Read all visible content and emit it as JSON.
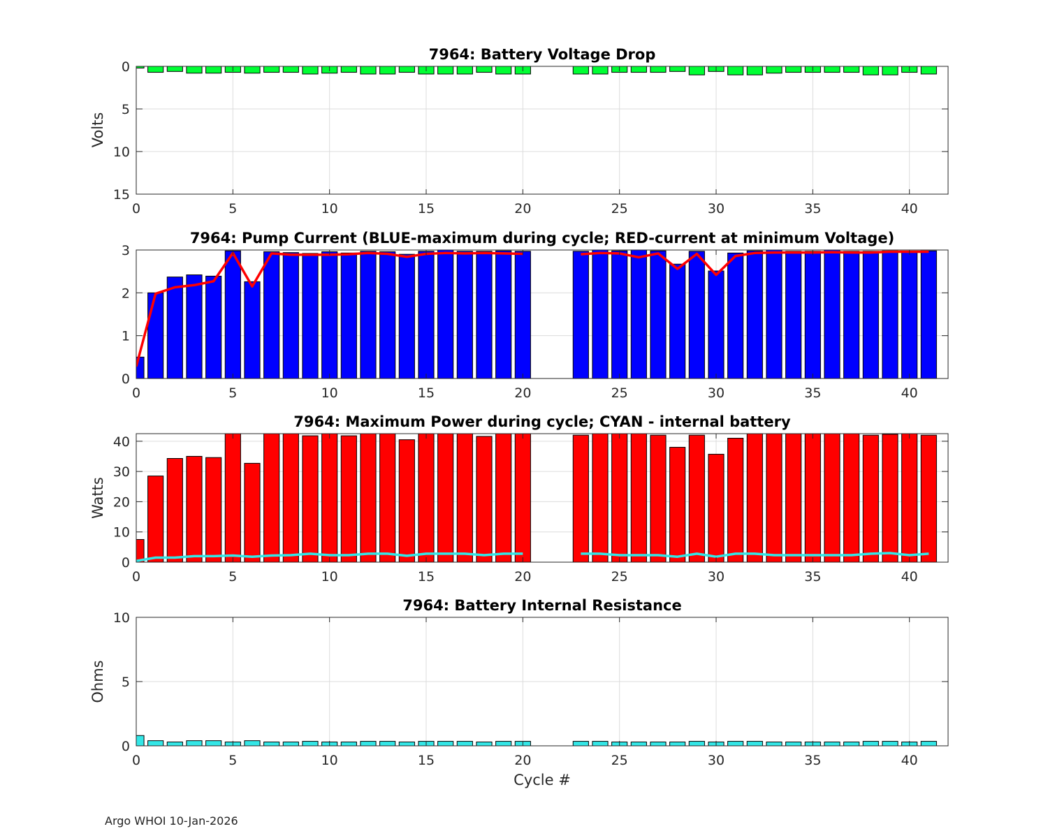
{
  "footer": "Argo WHOI 10-Jan-2026",
  "colors": {
    "voltage_bar": "#00ff33",
    "current_bar": "#0000ff",
    "current_line": "#ff0000",
    "power_bar": "#ff0000",
    "internal_line": "#33e6e6",
    "resistance_bar": "#33e6e6"
  },
  "chart_data": [
    {
      "type": "bar",
      "title": "7964: Battery Voltage Drop",
      "xlabel": "",
      "ylabel": "Volts",
      "xlim": [
        0,
        42
      ],
      "ylim": [
        0,
        15
      ],
      "y_reversed": true,
      "xticks": [
        "0",
        "5",
        "10",
        "15",
        "20",
        "25",
        "30",
        "35",
        "40"
      ],
      "yticks": [
        "0",
        "5",
        "10",
        "15"
      ],
      "grid": true,
      "x": [
        0,
        1,
        2,
        3,
        4,
        5,
        6,
        7,
        8,
        9,
        10,
        11,
        12,
        13,
        14,
        15,
        16,
        17,
        18,
        19,
        20,
        23,
        24,
        25,
        26,
        27,
        28,
        29,
        30,
        31,
        32,
        33,
        34,
        35,
        36,
        37,
        38,
        39,
        40,
        41
      ],
      "values": [
        0.2,
        0.7,
        0.6,
        0.8,
        0.8,
        0.7,
        0.8,
        0.7,
        0.7,
        0.9,
        0.8,
        0.7,
        0.9,
        0.9,
        0.7,
        0.9,
        0.9,
        0.9,
        0.7,
        0.9,
        0.9,
        0.9,
        0.9,
        0.7,
        0.7,
        0.7,
        0.6,
        1.0,
        0.6,
        1.0,
        1.0,
        0.8,
        0.7,
        0.7,
        0.7,
        0.7,
        1.0,
        1.0,
        0.7,
        0.9
      ]
    },
    {
      "type": "bar",
      "title": "7964: Pump Current (BLUE-maximum during cycle; RED-current at minimum Voltage)",
      "xlabel": "",
      "ylabel": "",
      "xlim": [
        0,
        42
      ],
      "ylim": [
        0,
        3
      ],
      "xticks": [
        "0",
        "5",
        "10",
        "15",
        "20",
        "25",
        "30",
        "35",
        "40"
      ],
      "yticks": [
        "0",
        "1",
        "2",
        "3"
      ],
      "grid": true,
      "x": [
        0,
        1,
        2,
        3,
        4,
        5,
        6,
        7,
        8,
        9,
        10,
        11,
        12,
        13,
        14,
        15,
        16,
        17,
        18,
        19,
        20,
        23,
        24,
        25,
        26,
        27,
        28,
        29,
        30,
        31,
        32,
        33,
        34,
        35,
        36,
        37,
        38,
        39,
        40,
        41
      ],
      "series": [
        {
          "name": "maximum during cycle",
          "kind": "bar",
          "values": [
            0.5,
            2.0,
            2.37,
            2.42,
            2.39,
            2.98,
            2.26,
            2.96,
            2.94,
            2.92,
            2.96,
            2.93,
            2.97,
            2.96,
            2.9,
            2.97,
            3.0,
            2.97,
            2.97,
            2.98,
            2.97,
            2.97,
            3.0,
            2.98,
            3.0,
            2.98,
            2.67,
            2.97,
            2.51,
            2.93,
            2.98,
            3.0,
            2.97,
            2.97,
            3.0,
            2.97,
            2.97,
            2.98,
            2.97,
            2.98
          ]
        },
        {
          "name": "current at minimum Voltage",
          "kind": "line",
          "values": [
            0.28,
            1.98,
            2.13,
            2.18,
            2.27,
            2.93,
            2.15,
            2.92,
            2.89,
            2.89,
            2.89,
            2.9,
            2.93,
            2.91,
            2.84,
            2.91,
            2.93,
            2.92,
            2.93,
            2.92,
            2.91,
            2.9,
            2.93,
            2.92,
            2.83,
            2.92,
            2.56,
            2.91,
            2.42,
            2.86,
            2.93,
            2.94,
            2.94,
            2.94,
            2.95,
            2.94,
            2.94,
            2.96,
            2.96,
            2.96
          ]
        }
      ]
    },
    {
      "type": "bar",
      "title": "7964: Maximum Power during cycle; CYAN - internal battery",
      "xlabel": "",
      "ylabel": "Watts",
      "xlim": [
        0,
        42
      ],
      "ylim": [
        0,
        42.5
      ],
      "xticks": [
        "0",
        "5",
        "10",
        "15",
        "20",
        "25",
        "30",
        "35",
        "40"
      ],
      "yticks": [
        "0",
        "10",
        "20",
        "30",
        "40"
      ],
      "grid": true,
      "x": [
        0,
        1,
        2,
        3,
        4,
        5,
        6,
        7,
        8,
        9,
        10,
        11,
        12,
        13,
        14,
        15,
        16,
        17,
        18,
        19,
        20,
        23,
        24,
        25,
        26,
        27,
        28,
        29,
        30,
        31,
        32,
        33,
        34,
        35,
        36,
        37,
        38,
        39,
        40,
        41
      ],
      "series": [
        {
          "name": "maximum power",
          "kind": "bar",
          "values": [
            7.5,
            28.5,
            34.3,
            35.0,
            34.6,
            42.5,
            32.7,
            42.5,
            42.5,
            41.8,
            42.5,
            41.8,
            42.5,
            42.5,
            40.5,
            42.5,
            42.5,
            42.5,
            41.6,
            42.5,
            42.5,
            42.0,
            42.5,
            42.5,
            42.5,
            42.0,
            38.0,
            42.0,
            35.7,
            41.0,
            42.5,
            42.5,
            42.5,
            42.5,
            42.5,
            42.5,
            42.0,
            42.3,
            42.5,
            42.0
          ]
        },
        {
          "name": "internal battery",
          "kind": "line",
          "values": [
            0.4,
            1.5,
            1.5,
            2.0,
            2.0,
            2.2,
            1.8,
            2.2,
            2.3,
            2.8,
            2.3,
            2.3,
            2.8,
            2.8,
            2.1,
            2.8,
            2.8,
            2.8,
            2.3,
            2.8,
            2.8,
            2.8,
            2.8,
            2.3,
            2.3,
            2.3,
            1.8,
            2.8,
            1.8,
            2.8,
            2.8,
            2.3,
            2.3,
            2.3,
            2.3,
            2.3,
            2.8,
            3.0,
            2.3,
            2.8
          ]
        }
      ]
    },
    {
      "type": "bar",
      "title": "7964: Battery Internal Resistance",
      "xlabel": "Cycle #",
      "ylabel": "Ohms",
      "xlim": [
        0,
        42
      ],
      "ylim": [
        0,
        10
      ],
      "xticks": [
        "0",
        "5",
        "10",
        "15",
        "20",
        "25",
        "30",
        "35",
        "40"
      ],
      "yticks": [
        "0",
        "5",
        "10"
      ],
      "grid": true,
      "x": [
        0,
        1,
        2,
        3,
        4,
        5,
        6,
        7,
        8,
        9,
        10,
        11,
        12,
        13,
        14,
        15,
        16,
        17,
        18,
        19,
        20,
        23,
        24,
        25,
        26,
        27,
        28,
        29,
        30,
        31,
        32,
        33,
        34,
        35,
        36,
        37,
        38,
        39,
        40,
        41
      ],
      "values": [
        0.8,
        0.4,
        0.3,
        0.4,
        0.4,
        0.3,
        0.4,
        0.3,
        0.3,
        0.35,
        0.3,
        0.3,
        0.35,
        0.35,
        0.3,
        0.35,
        0.35,
        0.35,
        0.3,
        0.35,
        0.35,
        0.35,
        0.35,
        0.3,
        0.3,
        0.3,
        0.3,
        0.35,
        0.3,
        0.35,
        0.35,
        0.3,
        0.3,
        0.3,
        0.3,
        0.3,
        0.35,
        0.35,
        0.3,
        0.35
      ]
    }
  ]
}
